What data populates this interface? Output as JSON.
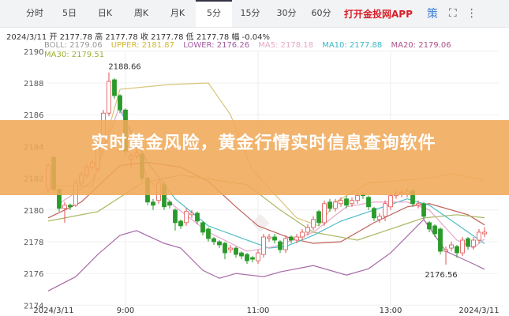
{
  "tabs": [
    {
      "label": "分时"
    },
    {
      "label": "5日"
    },
    {
      "label": "日K"
    },
    {
      "label": "周K"
    },
    {
      "label": "月K"
    },
    {
      "label": "5分",
      "active": true
    },
    {
      "label": "15分"
    },
    {
      "label": "30分"
    },
    {
      "label": "60分"
    }
  ],
  "app_link": "打开金投网APP",
  "strategy_label": "策",
  "icons": {
    "fullscreen": "fullscreen-icon",
    "more": "more-vertical-icon"
  },
  "info": {
    "date": "2024/3/11",
    "open_label": "开",
    "open": "2177.78",
    "high_label": "高",
    "high": "2177.78",
    "close_label": "收",
    "close": "2177.78",
    "low_label": "低",
    "low": "2177.78",
    "change_label": "幅",
    "change": "-0.04%"
  },
  "legend": [
    {
      "text": "BOLL: 2179.06",
      "color": "#9a9a9a"
    },
    {
      "text": "UPPER: 2181.87",
      "color": "#d4b830"
    },
    {
      "text": "LOWER: 2176.26",
      "color": "#a05aa0"
    },
    {
      "text": "MA5: 2178.18",
      "color": "#e6a8c4"
    },
    {
      "text": "MA10: 2177.88",
      "color": "#3bb8c8"
    },
    {
      "text": "MA20: 2179.06",
      "color": "#b0508a"
    },
    {
      "text": "MA30: 2179.51",
      "color": "#9cb030"
    }
  ],
  "banner": "实时黄金风险，黄金行情实时信息查询软件",
  "chart_data": {
    "type": "candlestick",
    "ylim": [
      2174,
      2190
    ],
    "yticks": [
      "2190",
      "2188",
      "2186",
      "2184",
      "2182",
      "2180",
      "2178",
      "2176",
      "2174"
    ],
    "xticks": [
      {
        "t": "07:55",
        "label": "2024/3/11"
      },
      {
        "t": "09:00",
        "label": "9:00"
      },
      {
        "t": "11:00",
        "label": "11:00"
      },
      {
        "t": "13:00",
        "label": "13:00"
      },
      {
        "t": "14:20",
        "label": "2024/3/11"
      }
    ],
    "annotations": [
      {
        "t": "08:45",
        "value": 2188.66,
        "label": "2188.66"
      },
      {
        "t": "13:50",
        "value": 2176.56,
        "label": "2176.56"
      }
    ],
    "up_color": "#e05050",
    "down_color": "#2a9a2a",
    "candles_fields": [
      "time",
      "open",
      "high",
      "low",
      "close"
    ],
    "candles": [
      [
        "07:50",
        2181.3,
        2183.0,
        2181.1,
        2182.8
      ],
      [
        "07:55",
        2183.3,
        2183.4,
        2181.1,
        2181.3
      ],
      [
        "08:00",
        2181.3,
        2181.4,
        2179.9,
        2180.1
      ],
      [
        "08:05",
        2180.1,
        2180.5,
        2179.2,
        2180.3
      ],
      [
        "08:10",
        2180.3,
        2180.4,
        2180.0,
        2180.2
      ],
      [
        "08:15",
        2180.3,
        2181.9,
        2180.2,
        2181.7
      ],
      [
        "08:20",
        2181.7,
        2182.4,
        2181.5,
        2182.2
      ],
      [
        "08:25",
        2182.2,
        2182.9,
        2182.0,
        2182.7
      ],
      [
        "08:30",
        2182.7,
        2183.2,
        2182.5,
        2183.0
      ],
      [
        "08:35",
        2182.6,
        2184.4,
        2182.4,
        2184.2
      ],
      [
        "08:40",
        2184.2,
        2186.3,
        2184.0,
        2186.1
      ],
      [
        "08:45",
        2186.1,
        2188.66,
        2185.9,
        2188.1
      ],
      [
        "08:50",
        2188.2,
        2188.3,
        2187.0,
        2187.2
      ],
      [
        "08:55",
        2187.2,
        2187.3,
        2186.1,
        2186.3
      ],
      [
        "09:00",
        2186.3,
        2186.4,
        2183.5,
        2183.7
      ],
      [
        "09:05",
        2183.2,
        2183.6,
        2182.6,
        2183.4
      ],
      [
        "09:10",
        2183.4,
        2183.8,
        2183.2,
        2183.6
      ],
      [
        "09:15",
        2183.5,
        2183.7,
        2181.8,
        2182.0
      ],
      [
        "09:20",
        2182.0,
        2182.1,
        2180.3,
        2180.5
      ],
      [
        "09:25",
        2180.5,
        2180.7,
        2180.0,
        2180.3
      ],
      [
        "09:30",
        2180.6,
        2181.9,
        2180.4,
        2181.7
      ],
      [
        "09:35",
        2181.6,
        2181.8,
        2180.0,
        2180.2
      ],
      [
        "09:40",
        2180.5,
        2180.6,
        2180.1,
        2180.3
      ],
      [
        "09:45",
        2180.0,
        2180.1,
        2178.7,
        2179.2
      ],
      [
        "09:50",
        2179.3,
        2179.4,
        2178.8,
        2179.0
      ],
      [
        "09:55",
        2179.2,
        2180.1,
        2179.0,
        2179.9
      ],
      [
        "10:00",
        2179.7,
        2180.0,
        2179.5,
        2179.8
      ],
      [
        "10:05",
        2179.8,
        2179.9,
        2179.1,
        2179.3
      ],
      [
        "10:10",
        2179.2,
        2179.3,
        2178.4,
        2178.6
      ],
      [
        "10:15",
        2178.8,
        2178.9,
        2178.0,
        2178.2
      ],
      [
        "10:20",
        2178.2,
        2178.3,
        2177.8,
        2178.0
      ],
      [
        "10:25",
        2178.0,
        2178.1,
        2177.6,
        2177.8
      ],
      [
        "10:30",
        2177.9,
        2178.0,
        2176.9,
        2177.3
      ],
      [
        "10:35",
        2177.5,
        2177.8,
        2177.3,
        2177.6
      ],
      [
        "10:40",
        2177.6,
        2177.7,
        2177.0,
        2177.2
      ],
      [
        "10:45",
        2177.3,
        2177.4,
        2176.9,
        2177.1
      ],
      [
        "10:50",
        2177.2,
        2177.3,
        2176.6,
        2176.8
      ],
      [
        "10:55",
        2177.0,
        2177.1,
        2176.7,
        2176.9
      ],
      [
        "11:00",
        2176.8,
        2177.5,
        2176.6,
        2177.3
      ],
      [
        "11:05",
        2177.2,
        2178.5,
        2177.0,
        2178.3
      ],
      [
        "11:10",
        2178.2,
        2178.5,
        2178.0,
        2178.3
      ],
      [
        "11:15",
        2178.3,
        2178.5,
        2177.9,
        2178.1
      ],
      [
        "11:20",
        2178.0,
        2178.1,
        2177.3,
        2177.5
      ],
      [
        "11:25",
        2177.5,
        2178.4,
        2177.3,
        2178.2
      ],
      [
        "11:30",
        2178.3,
        2178.4,
        2177.9,
        2178.1
      ],
      [
        "11:35",
        2178.1,
        2178.5,
        2177.9,
        2178.3
      ],
      [
        "11:40",
        2178.3,
        2178.8,
        2178.1,
        2178.6
      ],
      [
        "11:45",
        2178.6,
        2179.1,
        2178.4,
        2178.9
      ],
      [
        "11:50",
        2178.9,
        2179.6,
        2178.7,
        2179.4
      ],
      [
        "11:55",
        2179.9,
        2180.0,
        2179.0,
        2179.2
      ],
      [
        "12:00",
        2179.2,
        2180.6,
        2179.0,
        2180.4
      ],
      [
        "12:05",
        2180.5,
        2180.7,
        2179.9,
        2180.1
      ],
      [
        "12:10",
        2180.1,
        2180.7,
        2179.9,
        2180.5
      ],
      [
        "12:15",
        2180.4,
        2180.8,
        2180.2,
        2180.6
      ],
      [
        "12:20",
        2180.7,
        2180.9,
        2180.1,
        2180.3
      ],
      [
        "12:25",
        2180.4,
        2180.8,
        2180.2,
        2180.6
      ],
      [
        "12:30",
        2180.6,
        2181.1,
        2180.4,
        2180.9
      ],
      [
        "12:35",
        2181.0,
        2181.1,
        2180.7,
        2180.9
      ],
      [
        "12:40",
        2180.8,
        2180.9,
        2180.0,
        2180.2
      ],
      [
        "12:45",
        2180.1,
        2180.2,
        2179.3,
        2179.5
      ],
      [
        "12:50",
        2179.4,
        2179.8,
        2179.2,
        2179.6
      ],
      [
        "12:55",
        2179.6,
        2180.6,
        2179.3,
        2180.4
      ],
      [
        "13:00",
        2180.2,
        2181.1,
        2180.0,
        2180.9
      ],
      [
        "13:05",
        2180.9,
        2181.2,
        2180.7,
        2181.0
      ],
      [
        "13:10",
        2181.0,
        2181.3,
        2180.8,
        2181.1
      ],
      [
        "13:15",
        2181.0,
        2181.4,
        2180.8,
        2181.2
      ],
      [
        "13:20",
        2181.2,
        2181.3,
        2180.2,
        2180.4
      ],
      [
        "13:25",
        2180.3,
        2180.6,
        2180.1,
        2180.4
      ],
      [
        "13:30",
        2180.4,
        2180.5,
        2179.4,
        2179.6
      ],
      [
        "13:35",
        2179.2,
        2179.3,
        2178.6,
        2178.8
      ],
      [
        "13:40",
        2179.0,
        2179.1,
        2178.3,
        2178.5
      ],
      [
        "13:45",
        2178.8,
        2178.9,
        2177.2,
        2177.4
      ],
      [
        "13:50",
        2177.4,
        2177.7,
        2176.56,
        2177.5
      ],
      [
        "13:55",
        2177.6,
        2178.0,
        2177.4,
        2177.8
      ],
      [
        "14:00",
        2177.7,
        2177.8,
        2177.0,
        2177.3
      ],
      [
        "14:05",
        2177.3,
        2178.3,
        2177.1,
        2178.1
      ],
      [
        "14:10",
        2178.2,
        2178.3,
        2177.5,
        2177.7
      ],
      [
        "14:15",
        2177.7,
        2178.3,
        2177.5,
        2178.1
      ],
      [
        "14:20",
        2178.1,
        2178.8,
        2177.9,
        2178.6
      ],
      [
        "14:25",
        2178.5,
        2178.9,
        2178.3,
        2178.6
      ]
    ],
    "lines": [
      {
        "name": "UPPER",
        "color": "#d9c47a",
        "points": [
          [
            "07:50",
            2181.6
          ],
          [
            "08:05",
            2181.5
          ],
          [
            "08:30",
            2181.5
          ],
          [
            "08:55",
            2187.6
          ],
          [
            "09:40",
            2187.9
          ],
          [
            "10:15",
            2188.0
          ],
          [
            "10:35",
            2186.0
          ],
          [
            "10:55",
            2182.5
          ],
          [
            "11:15",
            2181.0
          ],
          [
            "11:35",
            2179.5
          ],
          [
            "11:55",
            2179.0
          ],
          [
            "12:10",
            2180.5
          ],
          [
            "12:40",
            2181.7
          ],
          [
            "13:35",
            2182.0
          ],
          [
            "13:55",
            2182.3
          ],
          [
            "14:25",
            2181.87
          ]
        ]
      },
      {
        "name": "LOWER",
        "color": "#a86aa8",
        "points": [
          [
            "07:50",
            2174.9
          ],
          [
            "08:15",
            2175.8
          ],
          [
            "08:35",
            2177.2
          ],
          [
            "08:55",
            2178.4
          ],
          [
            "09:10",
            2178.7
          ],
          [
            "09:35",
            2177.9
          ],
          [
            "09:50",
            2177.6
          ],
          [
            "10:10",
            2176.2
          ],
          [
            "10:25",
            2175.7
          ],
          [
            "10:40",
            2176.0
          ],
          [
            "11:05",
            2175.8
          ],
          [
            "11:20",
            2176.1
          ],
          [
            "11:50",
            2176.5
          ],
          [
            "12:20",
            2175.9
          ],
          [
            "12:40",
            2176.3
          ],
          [
            "13:00",
            2177.3
          ],
          [
            "13:30",
            2179.4
          ],
          [
            "13:50",
            2177.4
          ],
          [
            "14:15",
            2176.6
          ],
          [
            "14:25",
            2176.26
          ]
        ]
      },
      {
        "name": "BOLL",
        "color": "#c0605a",
        "points": [
          [
            "07:50",
            2179.5
          ],
          [
            "08:20",
            2180.5
          ],
          [
            "08:55",
            2182.8
          ],
          [
            "09:20",
            2183.0
          ],
          [
            "09:50",
            2182.7
          ],
          [
            "10:15",
            2181.8
          ],
          [
            "10:40",
            2180.2
          ],
          [
            "11:00",
            2179.0
          ],
          [
            "11:30",
            2178.2
          ],
          [
            "11:50",
            2177.9
          ],
          [
            "12:15",
            2178.0
          ],
          [
            "12:45",
            2179.2
          ],
          [
            "13:15",
            2180.2
          ],
          [
            "13:35",
            2180.4
          ],
          [
            "14:10",
            2179.7
          ],
          [
            "14:25",
            2179.06
          ]
        ]
      },
      {
        "name": "MA30",
        "color": "#a8b860",
        "points": [
          [
            "07:50",
            2179.3
          ],
          [
            "08:35",
            2179.9
          ],
          [
            "09:15",
            2181.7
          ],
          [
            "09:50",
            2182.2
          ],
          [
            "10:50",
            2181.6
          ],
          [
            "11:20",
            2180.0
          ],
          [
            "11:50",
            2178.6
          ],
          [
            "12:30",
            2178.1
          ],
          [
            "13:00",
            2178.8
          ],
          [
            "13:30",
            2179.5
          ],
          [
            "14:00",
            2179.7
          ],
          [
            "14:25",
            2179.51
          ]
        ]
      },
      {
        "name": "MA10",
        "color": "#4fbcc8",
        "points": [
          [
            "08:55",
            2186.3
          ],
          [
            "09:20",
            2183.0
          ],
          [
            "09:45",
            2180.7
          ],
          [
            "10:15",
            2179.0
          ],
          [
            "10:50",
            2178.1
          ],
          [
            "11:10",
            2177.6
          ],
          [
            "11:25",
            2177.7
          ],
          [
            "11:50",
            2178.4
          ],
          [
            "12:15",
            2179.3
          ],
          [
            "12:45",
            2180.0
          ],
          [
            "13:15",
            2180.7
          ],
          [
            "13:35",
            2180.3
          ],
          [
            "14:00",
            2179.1
          ],
          [
            "14:25",
            2177.88
          ]
        ]
      },
      {
        "name": "MA5",
        "color": "#e8a6c6",
        "points": [
          [
            "08:00",
            2180.4
          ],
          [
            "08:30",
            2181.8
          ],
          [
            "08:55",
            2186.6
          ],
          [
            "09:20",
            2182.0
          ],
          [
            "09:45",
            2180.2
          ],
          [
            "10:15",
            2178.6
          ],
          [
            "10:50",
            2177.4
          ],
          [
            "11:15",
            2177.7
          ],
          [
            "11:50",
            2178.6
          ],
          [
            "12:20",
            2180.2
          ],
          [
            "12:45",
            2180.5
          ],
          [
            "13:15",
            2180.5
          ],
          [
            "13:35",
            2180.0
          ],
          [
            "14:00",
            2178.1
          ],
          [
            "14:15",
            2177.6
          ],
          [
            "14:25",
            2178.18
          ]
        ]
      }
    ]
  }
}
